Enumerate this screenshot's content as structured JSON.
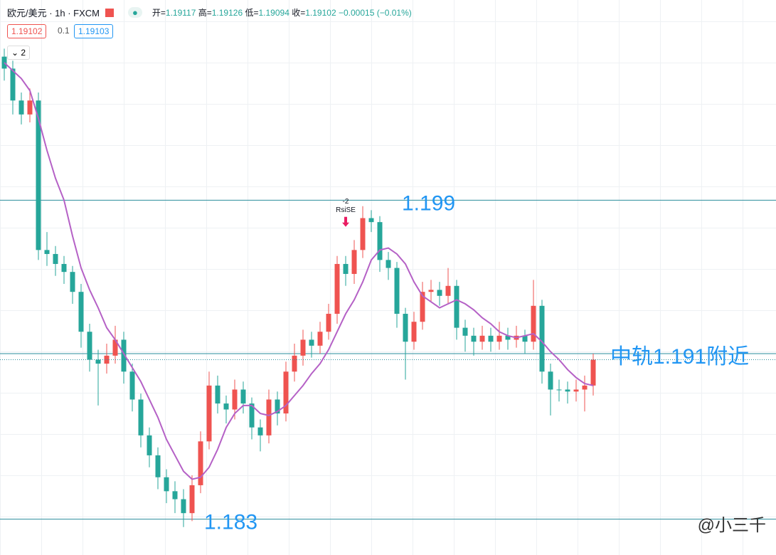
{
  "header": {
    "symbol": "欧元/美元 · 1h · FXCM",
    "open_label": "开=",
    "open": "1.19117",
    "high_label": "高=",
    "high": "1.19126",
    "low_label": "低=",
    "low": "1.19094",
    "close_label": "收=",
    "close": "1.19102",
    "change": "−0.00015 (−0.01%)",
    "bid": "1.19102",
    "spread": "0.1",
    "ask": "1.19103",
    "indicator_count": "2"
  },
  "chart_data": {
    "type": "candlestick",
    "ylim": [
      1.1812,
      1.2069
    ],
    "up_color": "#ef5350",
    "down_color": "#26a69a",
    "open": [
      1.2062,
      1.2056,
      1.204,
      1.2033,
      1.204,
      1.1965,
      1.1963,
      1.1958,
      1.1954,
      1.1944,
      1.1924,
      1.191,
      1.1908,
      1.1912,
      1.192,
      1.1904,
      1.189,
      1.1872,
      1.1862,
      1.1851,
      1.1844,
      1.184,
      1.1833,
      1.1847,
      1.1869,
      1.1897,
      1.1888,
      1.1885,
      1.1895,
      1.1888,
      1.1876,
      1.1872,
      1.189,
      1.1883,
      1.1904,
      1.1912,
      1.192,
      1.1917,
      1.1924,
      1.1933,
      1.1958,
      1.1953,
      1.1965,
      1.1981,
      1.1979,
      1.196,
      1.1956,
      1.1933,
      1.1919,
      1.1929,
      1.1944,
      1.1945,
      1.1942,
      1.1947,
      1.1926,
      1.1922,
      1.1919,
      1.1922,
      1.1919,
      1.1922,
      1.192,
      1.1922,
      1.1919,
      1.1937,
      1.1904,
      1.1895,
      1.1895,
      1.1894,
      1.1895,
      1.1897
    ],
    "high": [
      1.2066,
      1.206,
      1.2044,
      1.2046,
      1.2044,
      1.1974,
      1.1967,
      1.1962,
      1.1957,
      1.1948,
      1.1928,
      1.1915,
      1.1918,
      1.1927,
      1.1924,
      1.1908,
      1.1893,
      1.1876,
      1.1866,
      1.1855,
      1.1849,
      1.1845,
      1.1852,
      1.1874,
      1.1904,
      1.1902,
      1.1892,
      1.19,
      1.1899,
      1.1891,
      1.188,
      1.1895,
      1.1894,
      1.1909,
      1.1918,
      1.1925,
      1.1924,
      1.1929,
      1.1938,
      1.1962,
      1.1962,
      1.197,
      1.1987,
      1.1985,
      1.1982,
      1.1964,
      1.1959,
      1.1936,
      1.1934,
      1.1949,
      1.195,
      1.1949,
      1.1956,
      1.195,
      1.193,
      1.1926,
      1.1927,
      1.1926,
      1.1929,
      1.1926,
      1.1927,
      1.1925,
      1.195,
      1.194,
      1.1908,
      1.19,
      1.1899,
      1.19,
      1.1902,
      1.1913
    ],
    "low": [
      1.205,
      1.2033,
      1.2028,
      1.2029,
      1.196,
      1.1957,
      1.1952,
      1.1948,
      1.1938,
      1.1916,
      1.1904,
      1.1887,
      1.1903,
      1.1908,
      1.1898,
      1.1884,
      1.1866,
      1.1856,
      1.1845,
      1.1838,
      1.1833,
      1.1826,
      1.1829,
      1.1843,
      1.1865,
      1.1883,
      1.1878,
      1.188,
      1.1883,
      1.187,
      1.1864,
      1.1868,
      1.1877,
      1.1879,
      1.1899,
      1.1907,
      1.1911,
      1.1913,
      1.192,
      1.1928,
      1.1947,
      1.1948,
      1.1961,
      1.1974,
      1.1954,
      1.195,
      1.1926,
      1.19,
      1.1915,
      1.1925,
      1.1939,
      1.1937,
      1.1938,
      1.192,
      1.1914,
      1.1912,
      1.1915,
      1.1914,
      1.1915,
      1.1915,
      1.1916,
      1.1913,
      1.1915,
      1.1898,
      1.1882,
      1.1889,
      1.1888,
      1.1889,
      1.1884,
      1.1892
    ],
    "close": [
      1.2056,
      1.204,
      1.2033,
      1.204,
      1.1965,
      1.1963,
      1.1958,
      1.1954,
      1.1944,
      1.1924,
      1.191,
      1.1908,
      1.1912,
      1.192,
      1.1904,
      1.189,
      1.1872,
      1.1862,
      1.1851,
      1.1844,
      1.184,
      1.1833,
      1.1847,
      1.1869,
      1.1897,
      1.1888,
      1.1885,
      1.1895,
      1.1888,
      1.1876,
      1.1872,
      1.189,
      1.1883,
      1.1904,
      1.1912,
      1.192,
      1.1917,
      1.1924,
      1.1933,
      1.1958,
      1.1953,
      1.1965,
      1.1981,
      1.1979,
      1.196,
      1.1956,
      1.1933,
      1.1919,
      1.1929,
      1.1944,
      1.1945,
      1.1942,
      1.1947,
      1.1926,
      1.1922,
      1.1919,
      1.1922,
      1.1919,
      1.1922,
      1.192,
      1.1922,
      1.1919,
      1.1937,
      1.1904,
      1.1895,
      1.1895,
      1.1894,
      1.1895,
      1.1897,
      1.191
    ],
    "ma": {
      "color": "#b561c6",
      "values": [
        1.2059,
        1.2055,
        1.2051,
        1.2045,
        1.2031,
        1.2015,
        1.2001,
        1.199,
        1.1972,
        1.1956,
        1.1945,
        1.1936,
        1.1926,
        1.192,
        1.1913,
        1.1906,
        1.1899,
        1.189,
        1.1881,
        1.187,
        1.1862,
        1.1854,
        1.185,
        1.1851,
        1.1856,
        1.1865,
        1.1876,
        1.1883,
        1.1887,
        1.1887,
        1.1883,
        1.1882,
        1.1884,
        1.1887,
        1.1892,
        1.1897,
        1.1903,
        1.1908,
        1.1915,
        1.1924,
        1.1933,
        1.194,
        1.1949,
        1.196,
        1.1965,
        1.1966,
        1.1963,
        1.1958,
        1.1949,
        1.1942,
        1.1939,
        1.1936,
        1.1938,
        1.194,
        1.1938,
        1.1935,
        1.1931,
        1.1928,
        1.1924,
        1.1922,
        1.1921,
        1.1922,
        1.1923,
        1.1919,
        1.1914,
        1.191,
        1.1905,
        1.1901,
        1.1898,
        1.1897
      ]
    },
    "levels": [
      {
        "value": 1.199,
        "label": "1.199"
      },
      {
        "value": 1.183,
        "label": "1.183"
      },
      {
        "value": 1.1913,
        "label": "中轨1.191附近"
      }
    ],
    "level_color": "#2a8d9c",
    "label_color": "#2196f3",
    "signal": {
      "index": 40,
      "count": "-2",
      "label": "RsiSE"
    },
    "watermark": "@小三千"
  }
}
